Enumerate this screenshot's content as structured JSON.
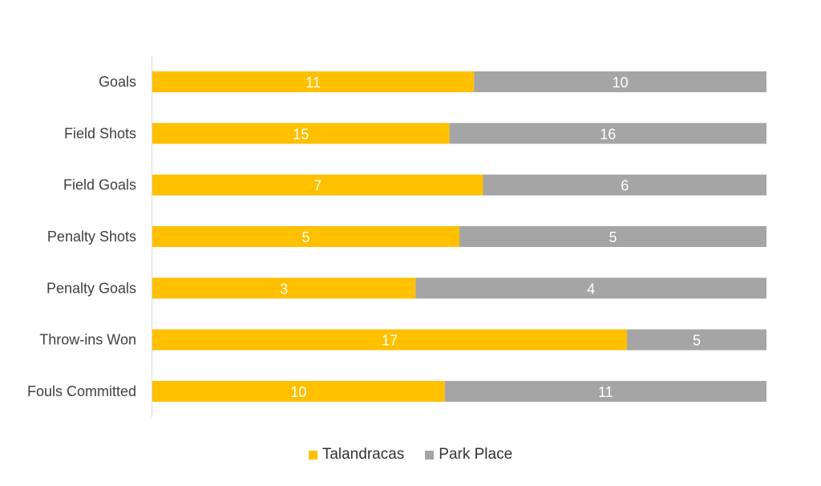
{
  "colors": {
    "series_1": "#FFC000",
    "series_2": "#A5A5A5",
    "axis": "#D9D9D9"
  },
  "chart_data": {
    "type": "bar",
    "orientation": "horizontal",
    "stacked": "percent",
    "categories": [
      "Goals",
      "Field Shots",
      "Field Goals",
      "Penalty Shots",
      "Penalty Goals",
      "Throw-ins Won",
      "Fouls Committed"
    ],
    "series": [
      {
        "name": "Talandracas",
        "values": [
          11,
          15,
          7,
          5,
          3,
          17,
          10
        ]
      },
      {
        "name": "Park Place",
        "values": [
          10,
          16,
          6,
          5,
          4,
          5,
          11
        ]
      }
    ],
    "title": "",
    "xlabel": "",
    "ylabel": "",
    "grid": false,
    "legend": "bottom",
    "data_labels": true
  }
}
